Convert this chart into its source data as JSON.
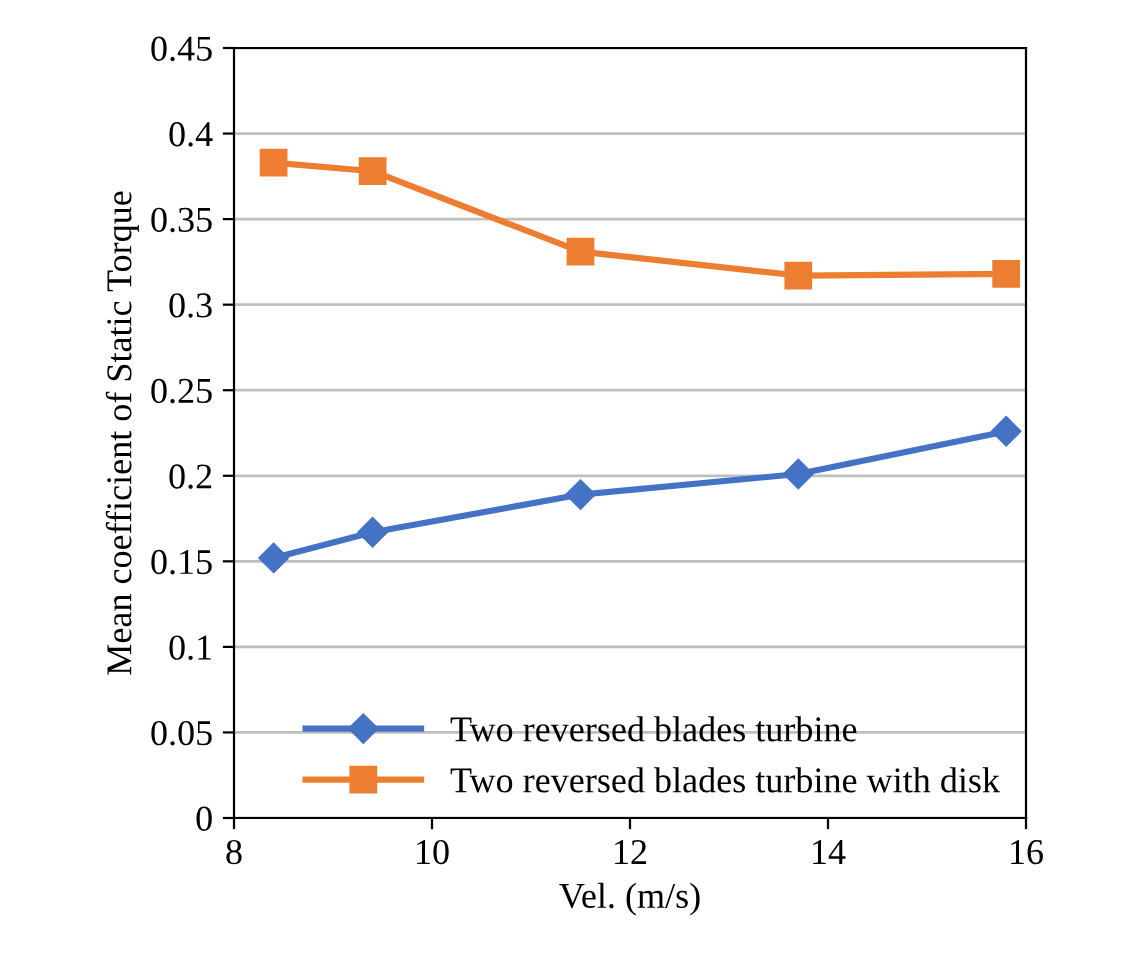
{
  "chart_data": {
    "type": "line",
    "xlabel": "Vel. (m/s)",
    "ylabel": "Mean coefficient of Static Torque",
    "x": [
      8.4,
      9.4,
      11.5,
      13.7,
      15.8
    ],
    "series": [
      {
        "name": "Two reversed blades turbine",
        "color": "#4472c4",
        "marker": "diamond",
        "values": [
          0.152,
          0.167,
          0.189,
          0.201,
          0.226
        ]
      },
      {
        "name": "Two reversed blades turbine with disk",
        "color": "#ed7d31",
        "marker": "square",
        "values": [
          0.383,
          0.378,
          0.331,
          0.317,
          0.318
        ]
      }
    ],
    "xlim": [
      8,
      16
    ],
    "xticks": [
      8,
      10,
      12,
      14,
      16
    ],
    "ylim": [
      0,
      0.45
    ],
    "yticks": [
      0,
      0.05,
      0.1,
      0.15,
      0.2,
      0.25,
      0.3,
      0.35,
      0.4,
      0.45
    ],
    "grid": "y",
    "legend": "bottom right",
    "line_style": "solid"
  }
}
